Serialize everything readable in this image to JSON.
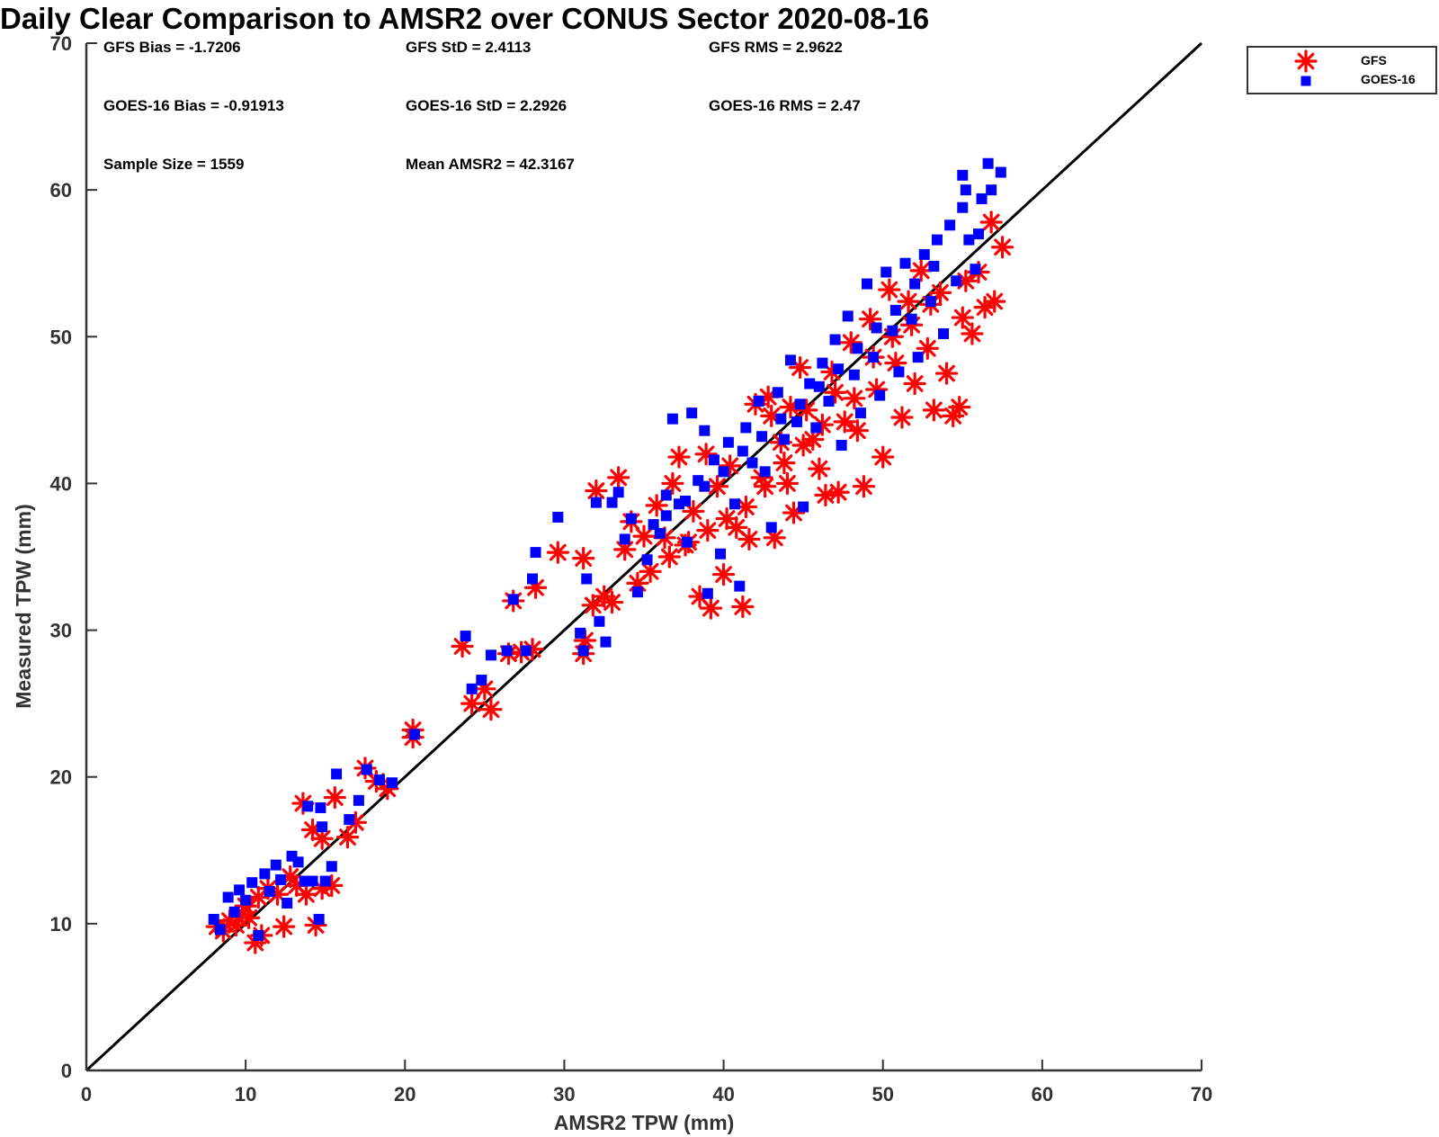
{
  "chart_data": {
    "type": "scatter",
    "title": "Daily Clear Comparison to AMSR2 over CONUS Sector 2020-08-16",
    "xlabel": "AMSR2 TPW (mm)",
    "ylabel": "Measured TPW (mm)",
    "xlim": [
      0,
      70
    ],
    "ylim": [
      0,
      70
    ],
    "xticks": [
      "0",
      "10",
      "20",
      "30",
      "40",
      "50",
      "60",
      "70"
    ],
    "yticks": [
      "0",
      "10",
      "20",
      "30",
      "40",
      "50",
      "60",
      "70"
    ],
    "grid": false,
    "legend_position": "outside top-right",
    "reference_line": {
      "x": [
        0,
        70
      ],
      "y": [
        0,
        70
      ],
      "color": "#000000"
    },
    "stats": {
      "gfs_bias": "GFS Bias = -1.7206",
      "gfs_std": "GFS StD = 2.4113",
      "gfs_rms": "GFS RMS = 2.9622",
      "goes_bias": "GOES-16 Bias = -0.91913",
      "goes_std": "GOES-16 StD = 2.2926",
      "goes_rms": "GOES-16 RMS = 2.47",
      "sample_size": "Sample Size = 1559",
      "mean_amsr2": "Mean AMSR2 = 42.3167"
    },
    "series": [
      {
        "name": "GFS",
        "marker": "asterisk",
        "color": "#ff0000",
        "points": [
          [
            8.2,
            9.8
          ],
          [
            8.6,
            9.5
          ],
          [
            9.0,
            10.2
          ],
          [
            9.4,
            9.9
          ],
          [
            9.8,
            10.6
          ],
          [
            10.2,
            10.4
          ],
          [
            10.6,
            8.7
          ],
          [
            11.0,
            9.2
          ],
          [
            10.0,
            11.2
          ],
          [
            10.8,
            11.8
          ],
          [
            11.4,
            12.4
          ],
          [
            12.0,
            12.0
          ],
          [
            12.4,
            9.8
          ],
          [
            12.8,
            13.2
          ],
          [
            13.2,
            12.6
          ],
          [
            13.8,
            12.0
          ],
          [
            14.4,
            9.9
          ],
          [
            14.8,
            12.4
          ],
          [
            15.4,
            12.6
          ],
          [
            13.6,
            18.2
          ],
          [
            14.2,
            16.4
          ],
          [
            14.8,
            15.8
          ],
          [
            15.6,
            18.6
          ],
          [
            16.4,
            15.9
          ],
          [
            16.9,
            16.9
          ],
          [
            17.5,
            20.6
          ],
          [
            18.2,
            19.7
          ],
          [
            18.9,
            19.2
          ],
          [
            20.5,
            22.7
          ],
          [
            20.5,
            23.2
          ],
          [
            23.6,
            28.9
          ],
          [
            24.2,
            25.0
          ],
          [
            25.0,
            26.0
          ],
          [
            25.4,
            24.6
          ],
          [
            26.5,
            28.4
          ],
          [
            26.8,
            32.0
          ],
          [
            27.3,
            28.5
          ],
          [
            28.0,
            28.7
          ],
          [
            28.2,
            32.9
          ],
          [
            29.6,
            35.3
          ],
          [
            31.2,
            28.4
          ],
          [
            31.3,
            29.3
          ],
          [
            31.2,
            34.9
          ],
          [
            31.8,
            31.7
          ],
          [
            32.0,
            39.5
          ],
          [
            32.5,
            32.3
          ],
          [
            33.0,
            31.9
          ],
          [
            33.4,
            40.4
          ],
          [
            33.8,
            35.5
          ],
          [
            34.2,
            37.4
          ],
          [
            34.6,
            33.2
          ],
          [
            35.0,
            36.4
          ],
          [
            35.4,
            34.0
          ],
          [
            35.8,
            38.5
          ],
          [
            36.3,
            36.3
          ],
          [
            36.8,
            40.0
          ],
          [
            37.2,
            41.8
          ],
          [
            37.6,
            35.8
          ],
          [
            38.1,
            38.1
          ],
          [
            38.5,
            32.3
          ],
          [
            38.9,
            42.0
          ],
          [
            39.2,
            31.5
          ],
          [
            39.6,
            39.8
          ],
          [
            40.0,
            33.8
          ],
          [
            40.4,
            41.2
          ],
          [
            40.8,
            37.0
          ],
          [
            41.2,
            31.6
          ],
          [
            41.6,
            36.2
          ],
          [
            42.0,
            45.4
          ],
          [
            42.4,
            40.4
          ],
          [
            42.8,
            45.9
          ],
          [
            43.2,
            36.3
          ],
          [
            43.6,
            42.8
          ],
          [
            44.0,
            40.0
          ],
          [
            44.4,
            38.0
          ],
          [
            44.8,
            47.9
          ],
          [
            45.2,
            45.0
          ],
          [
            45.6,
            43.0
          ],
          [
            46.0,
            41.0
          ],
          [
            46.4,
            39.2
          ],
          [
            46.8,
            47.6
          ],
          [
            47.2,
            39.4
          ],
          [
            47.6,
            44.2
          ],
          [
            48.0,
            49.6
          ],
          [
            48.4,
            43.6
          ],
          [
            48.8,
            39.8
          ],
          [
            49.2,
            51.2
          ],
          [
            49.6,
            46.4
          ],
          [
            50.0,
            41.8
          ],
          [
            50.4,
            53.2
          ],
          [
            50.8,
            48.2
          ],
          [
            51.2,
            44.5
          ],
          [
            51.6,
            52.4
          ],
          [
            52.0,
            46.8
          ],
          [
            52.4,
            54.5
          ],
          [
            52.8,
            49.2
          ],
          [
            53.2,
            45.0
          ],
          [
            53.6,
            53.0
          ],
          [
            54.0,
            47.5
          ],
          [
            54.4,
            44.6
          ],
          [
            54.8,
            45.2
          ],
          [
            55.0,
            51.3
          ],
          [
            55.2,
            53.8
          ],
          [
            55.6,
            50.2
          ],
          [
            56.0,
            54.4
          ],
          [
            56.4,
            52.0
          ],
          [
            56.8,
            57.8
          ],
          [
            57.0,
            52.4
          ],
          [
            57.5,
            56.1
          ],
          [
            48.2,
            45.8
          ],
          [
            47.0,
            46.2
          ],
          [
            46.2,
            44.0
          ],
          [
            45.0,
            42.6
          ],
          [
            43.8,
            41.4
          ],
          [
            42.6,
            39.8
          ],
          [
            41.4,
            38.4
          ],
          [
            40.2,
            37.6
          ],
          [
            39.0,
            36.8
          ],
          [
            37.8,
            36.0
          ],
          [
            36.6,
            35.0
          ],
          [
            50.6,
            50.0
          ],
          [
            49.4,
            48.6
          ],
          [
            51.8,
            50.8
          ],
          [
            53.0,
            52.2
          ],
          [
            44.2,
            45.2
          ],
          [
            43.0,
            44.6
          ]
        ]
      },
      {
        "name": "GOES-16",
        "marker": "square",
        "color": "#0000ff",
        "points": [
          [
            8.0,
            10.3
          ],
          [
            8.4,
            9.6
          ],
          [
            8.9,
            11.8
          ],
          [
            9.3,
            10.8
          ],
          [
            9.6,
            12.3
          ],
          [
            10.0,
            11.6
          ],
          [
            10.4,
            12.8
          ],
          [
            10.8,
            9.2
          ],
          [
            11.2,
            13.4
          ],
          [
            11.5,
            12.2
          ],
          [
            11.9,
            14.0
          ],
          [
            12.2,
            13.0
          ],
          [
            12.6,
            11.4
          ],
          [
            12.9,
            14.6
          ],
          [
            13.3,
            14.2
          ],
          [
            13.7,
            12.9
          ],
          [
            14.2,
            12.9
          ],
          [
            14.6,
            10.3
          ],
          [
            15.0,
            12.9
          ],
          [
            15.4,
            13.9
          ],
          [
            13.9,
            18.0
          ],
          [
            14.7,
            17.9
          ],
          [
            14.8,
            16.6
          ],
          [
            15.7,
            20.2
          ],
          [
            16.5,
            17.1
          ],
          [
            17.1,
            18.4
          ],
          [
            17.6,
            20.5
          ],
          [
            18.4,
            19.8
          ],
          [
            19.2,
            19.6
          ],
          [
            20.6,
            22.9
          ],
          [
            23.8,
            29.6
          ],
          [
            24.2,
            26.0
          ],
          [
            24.8,
            26.6
          ],
          [
            25.4,
            28.3
          ],
          [
            26.4,
            28.6
          ],
          [
            26.8,
            32.1
          ],
          [
            27.6,
            28.6
          ],
          [
            28.2,
            35.3
          ],
          [
            28.0,
            33.5
          ],
          [
            29.6,
            37.7
          ],
          [
            31.0,
            29.8
          ],
          [
            31.2,
            28.6
          ],
          [
            31.4,
            33.5
          ],
          [
            32.0,
            38.7
          ],
          [
            32.2,
            30.6
          ],
          [
            32.6,
            29.2
          ],
          [
            33.0,
            38.7
          ],
          [
            33.4,
            39.4
          ],
          [
            33.8,
            36.2
          ],
          [
            34.2,
            37.6
          ],
          [
            34.6,
            32.6
          ],
          [
            35.2,
            34.8
          ],
          [
            35.6,
            37.2
          ],
          [
            36.0,
            36.6
          ],
          [
            36.4,
            39.2
          ],
          [
            36.8,
            44.4
          ],
          [
            37.2,
            38.6
          ],
          [
            37.7,
            36.0
          ],
          [
            38.0,
            44.8
          ],
          [
            38.4,
            40.2
          ],
          [
            38.8,
            43.6
          ],
          [
            39.0,
            32.5
          ],
          [
            39.4,
            41.6
          ],
          [
            39.8,
            35.2
          ],
          [
            40.3,
            42.8
          ],
          [
            40.7,
            38.6
          ],
          [
            41.0,
            33.0
          ],
          [
            41.4,
            43.8
          ],
          [
            41.8,
            41.4
          ],
          [
            42.2,
            45.6
          ],
          [
            42.6,
            40.8
          ],
          [
            43.0,
            37.0
          ],
          [
            43.4,
            46.2
          ],
          [
            43.8,
            43.0
          ],
          [
            44.2,
            48.4
          ],
          [
            44.6,
            44.2
          ],
          [
            45.0,
            38.4
          ],
          [
            45.4,
            46.8
          ],
          [
            45.8,
            43.8
          ],
          [
            46.2,
            48.2
          ],
          [
            46.6,
            45.6
          ],
          [
            47.0,
            49.8
          ],
          [
            47.4,
            42.6
          ],
          [
            47.8,
            51.4
          ],
          [
            48.2,
            47.4
          ],
          [
            48.6,
            44.8
          ],
          [
            49.0,
            53.6
          ],
          [
            49.4,
            48.6
          ],
          [
            49.8,
            46.0
          ],
          [
            50.2,
            54.4
          ],
          [
            50.6,
            50.4
          ],
          [
            51.0,
            47.6
          ],
          [
            51.4,
            55.0
          ],
          [
            51.8,
            51.2
          ],
          [
            52.2,
            48.6
          ],
          [
            52.6,
            55.6
          ],
          [
            53.0,
            52.4
          ],
          [
            53.4,
            56.6
          ],
          [
            53.8,
            50.2
          ],
          [
            54.2,
            57.6
          ],
          [
            54.6,
            53.8
          ],
          [
            55.0,
            61.0
          ],
          [
            55.2,
            60.0
          ],
          [
            55.4,
            56.6
          ],
          [
            55.8,
            54.6
          ],
          [
            56.2,
            59.4
          ],
          [
            56.6,
            61.8
          ],
          [
            56.8,
            60.0
          ],
          [
            57.4,
            61.2
          ],
          [
            55.0,
            58.8
          ],
          [
            56.0,
            57.0
          ],
          [
            50.8,
            51.8
          ],
          [
            49.6,
            50.6
          ],
          [
            48.4,
            49.2
          ],
          [
            47.2,
            47.8
          ],
          [
            46.0,
            46.6
          ],
          [
            44.8,
            45.4
          ],
          [
            43.6,
            44.4
          ],
          [
            42.4,
            43.2
          ],
          [
            41.2,
            42.2
          ],
          [
            40.0,
            40.8
          ],
          [
            38.8,
            39.8
          ],
          [
            37.6,
            38.8
          ],
          [
            36.4,
            37.8
          ],
          [
            52.0,
            53.6
          ],
          [
            53.2,
            54.8
          ]
        ]
      }
    ]
  }
}
